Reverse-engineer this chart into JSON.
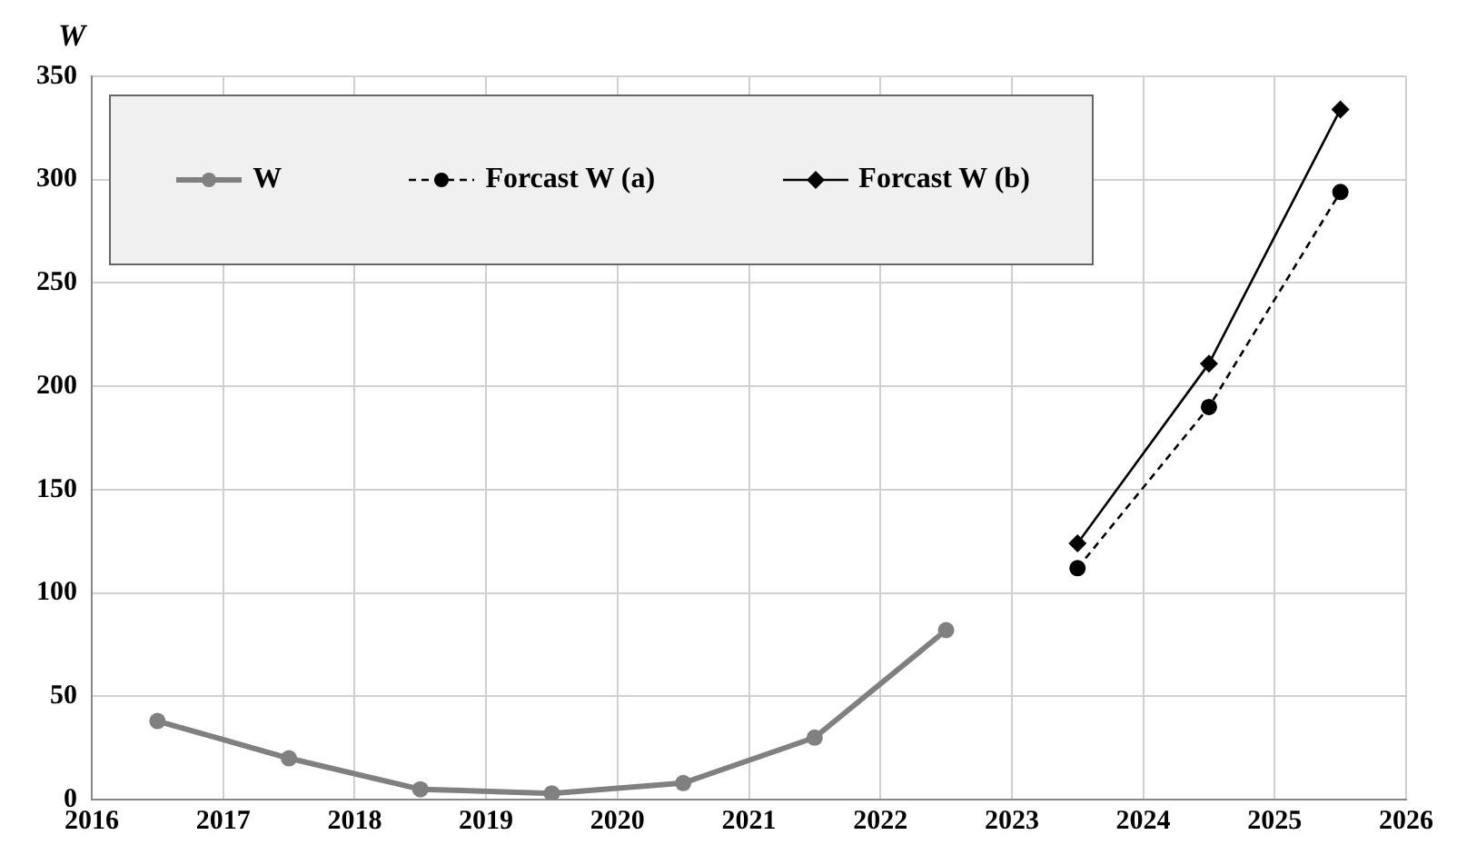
{
  "chart_data": {
    "type": "line",
    "ylabel": "W",
    "xlim": [
      2016,
      2026
    ],
    "xticks": [
      2016,
      2017,
      2018,
      2019,
      2020,
      2021,
      2022,
      2023,
      2024,
      2025,
      2026
    ],
    "ylim": [
      0,
      350
    ],
    "yticks": [
      0,
      50,
      100,
      150,
      200,
      250,
      300,
      350
    ],
    "grid": true,
    "legend": "top left",
    "series": [
      {
        "name": "W",
        "color": "#808080",
        "marker": "circle",
        "line_style": "solid",
        "x": [
          2016.5,
          2017.5,
          2018.5,
          2019.5,
          2020.5,
          2021.5,
          2022.5
        ],
        "values": [
          38,
          20,
          5,
          3,
          8,
          30,
          82
        ]
      },
      {
        "name": "Forcast W (a)",
        "color": "#000000",
        "marker": "circle",
        "line_style": "dashed",
        "x": [
          2023.5,
          2024.5,
          2025.5
        ],
        "values": [
          112,
          190,
          294
        ]
      },
      {
        "name": "Forcast W (b)",
        "color": "#000000",
        "marker": "diamond",
        "line_style": "solid",
        "x": [
          2023.5,
          2024.5,
          2025.5
        ],
        "values": [
          124,
          211,
          334
        ]
      }
    ]
  }
}
